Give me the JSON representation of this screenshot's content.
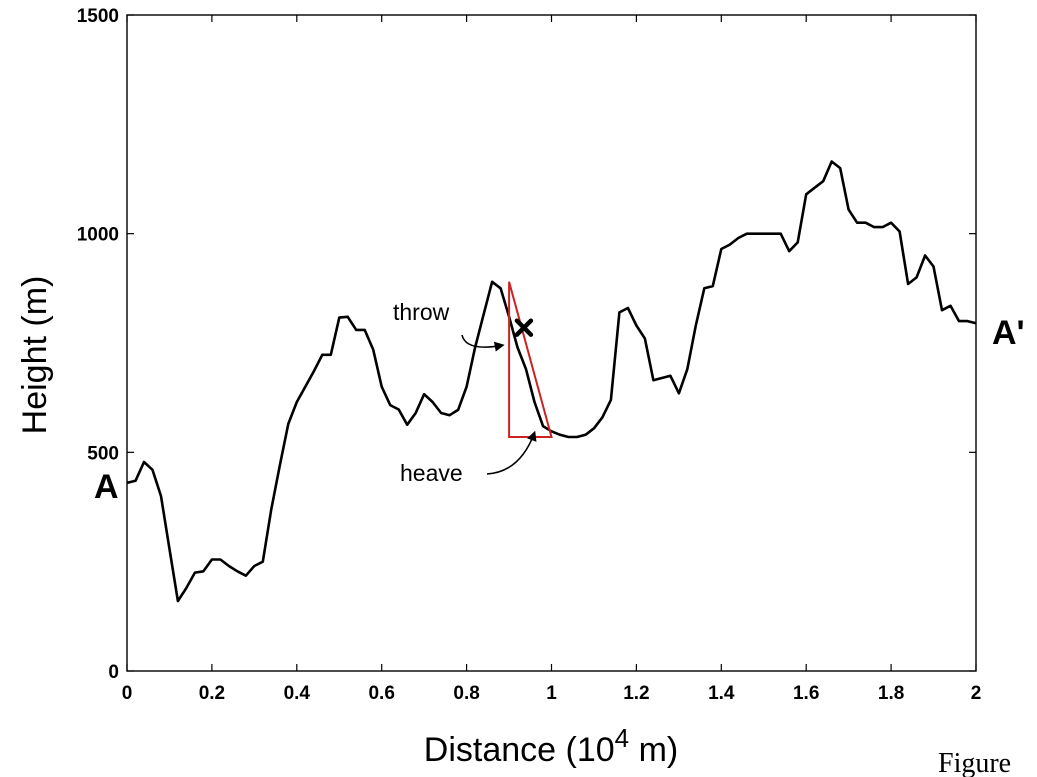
{
  "chart_data": {
    "type": "line",
    "xlabel": "Distance (10",
    "xlabel_exp": "4",
    "xlabel_unit": " m)",
    "ylabel": "Height (m)",
    "xlim": [
      0,
      2
    ],
    "ylim": [
      0,
      1500
    ],
    "grid": false,
    "x_ticks": [
      {
        "value": 0,
        "label": "0"
      },
      {
        "value": 0.2,
        "label": "0.2"
      },
      {
        "value": 0.4,
        "label": "0.4"
      },
      {
        "value": 0.6,
        "label": "0.6"
      },
      {
        "value": 0.8,
        "label": "0.8"
      },
      {
        "value": 1.0,
        "label": "1"
      },
      {
        "value": 1.2,
        "label": "1.2"
      },
      {
        "value": 1.4,
        "label": "1.4"
      },
      {
        "value": 1.6,
        "label": "1.6"
      },
      {
        "value": 1.8,
        "label": "1.8"
      },
      {
        "value": 2.0,
        "label": "2"
      }
    ],
    "y_ticks": [
      {
        "value": 0,
        "label": "0"
      },
      {
        "value": 500,
        "label": "500"
      },
      {
        "value": 1000,
        "label": "1000"
      },
      {
        "value": 1500,
        "label": "1500"
      }
    ],
    "series": [
      {
        "color": "#000000",
        "x": [
          0,
          0.02,
          0.04,
          0.06,
          0.08,
          0.1,
          0.12,
          0.14,
          0.16,
          0.18,
          0.2,
          0.22,
          0.24,
          0.26,
          0.28,
          0.3,
          0.32,
          0.34,
          0.36,
          0.38,
          0.4,
          0.42,
          0.44,
          0.46,
          0.48,
          0.5,
          0.52,
          0.54,
          0.56,
          0.58,
          0.6,
          0.62,
          0.64,
          0.66,
          0.68,
          0.7,
          0.72,
          0.74,
          0.76,
          0.78,
          0.8,
          0.82,
          0.84,
          0.86,
          0.88,
          0.9,
          0.92,
          0.94,
          0.96,
          0.98,
          1.0,
          1.02,
          1.04,
          1.06,
          1.08,
          1.1,
          1.12,
          1.14,
          1.16,
          1.18,
          1.2,
          1.22,
          1.24,
          1.26,
          1.28,
          1.3,
          1.32,
          1.34,
          1.36,
          1.38,
          1.4,
          1.42,
          1.44,
          1.46,
          1.48,
          1.5,
          1.52,
          1.54,
          1.56,
          1.58,
          1.6,
          1.62,
          1.64,
          1.66,
          1.68,
          1.7,
          1.72,
          1.74,
          1.76,
          1.78,
          1.8,
          1.82,
          1.84,
          1.86,
          1.88,
          1.9,
          1.92,
          1.94,
          1.96,
          1.98,
          2.0
        ],
        "y": [
          430,
          435,
          478,
          460,
          400,
          280,
          160,
          190,
          225,
          228,
          255,
          255,
          240,
          228,
          218,
          240,
          250,
          370,
          470,
          565,
          615,
          650,
          685,
          723,
          723,
          808,
          810,
          780,
          780,
          735,
          650,
          608,
          598,
          563,
          590,
          633,
          615,
          590,
          585,
          597,
          650,
          740,
          815,
          890,
          875,
          810,
          740,
          690,
          615,
          560,
          548,
          540,
          535,
          535,
          540,
          555,
          580,
          620,
          820,
          830,
          790,
          760,
          665,
          670,
          675,
          635,
          690,
          790,
          875,
          880,
          965,
          975,
          990,
          1000,
          1000,
          1000,
          1000,
          1000,
          960,
          980,
          1090,
          1105,
          1120,
          1165,
          1150,
          1055,
          1025,
          1025,
          1015,
          1015,
          1025,
          1005,
          885,
          900,
          950,
          925,
          825,
          835,
          800,
          800,
          795
        ]
      }
    ],
    "triangle": {
      "color": "#cc2222",
      "apex": [
        0.9,
        890
      ],
      "base_left": [
        0.9,
        535
      ],
      "base_right": [
        1.0,
        535
      ]
    },
    "marker": {
      "x": 0.935,
      "y": 785,
      "symbol": "x"
    },
    "annotations": [
      {
        "text": "throw",
        "arrow_to": [
          0.885,
          745
        ]
      },
      {
        "text": "heave",
        "arrow_to": [
          0.96,
          545
        ]
      }
    ],
    "endpoint_labels": {
      "start": "A",
      "end": "A'"
    },
    "caption_fragment": "Figure"
  }
}
